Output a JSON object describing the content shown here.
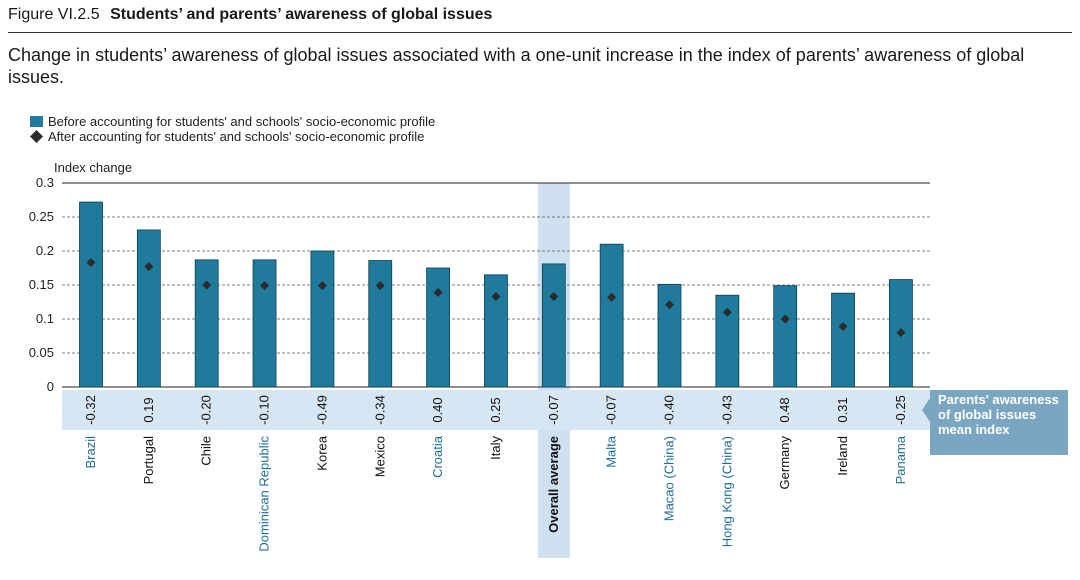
{
  "figure": {
    "number": "Figure VI.2.5",
    "title": "Students’ and parents’ awareness of global issues",
    "subtitle": "Change in students’ awareness of global issues associated with a one-unit increase in the index of parents’ awareness of global issues."
  },
  "colors": {
    "bar": "#1f7a9c",
    "marker": "#2b2b2b",
    "band": "#d7e6f3",
    "highlight": "#cfe1f1",
    "callout": "#7aa6c2",
    "highlight_text": "#1f6e9a"
  },
  "chart_data": {
    "type": "bar",
    "ylabel": "Index change",
    "ylim": [
      0,
      0.3
    ],
    "yticks": [
      0,
      0.05,
      0.1,
      0.15,
      0.2,
      0.25,
      0.3
    ],
    "ytick_labels": [
      "0",
      "0.05",
      "0.1",
      "0.15",
      "0.2",
      "0.25",
      "0.3"
    ],
    "grid": true,
    "legend_position": "top-left",
    "categories": [
      "Brazil",
      "Portugal",
      "Chile",
      "Dominican Republic",
      "Korea",
      "Mexico",
      "Croatia",
      "Italy",
      "Overall average",
      "Malta",
      "Macao (China)",
      "Hong Kong (China)",
      "Germany",
      "Ireland",
      "Panama"
    ],
    "category_highlight": [
      true,
      false,
      false,
      true,
      false,
      false,
      true,
      false,
      false,
      true,
      true,
      true,
      false,
      false,
      true
    ],
    "overall_index": 8,
    "series": [
      {
        "name": "Before accounting for students' and schools' socio-economic profile",
        "kind": "bar",
        "values": [
          0.272,
          0.231,
          0.187,
          0.187,
          0.2,
          0.186,
          0.175,
          0.165,
          0.181,
          0.21,
          0.151,
          0.135,
          0.149,
          0.138,
          0.158
        ]
      },
      {
        "name": "After accounting for students' and schools' socio-economic profile",
        "kind": "marker",
        "values": [
          0.183,
          0.177,
          0.15,
          0.149,
          0.149,
          0.149,
          0.139,
          0.133,
          0.133,
          0.132,
          0.121,
          0.11,
          0.1,
          0.089,
          0.08
        ]
      }
    ],
    "index_values": [
      "-0.32",
      "0.19",
      "-0.20",
      "-0.10",
      "-0.49",
      "-0.34",
      "0.40",
      "0.25",
      "-0.07",
      "-0.07",
      "-0.40",
      "-0.43",
      "0.48",
      "0.31",
      "-0.25"
    ],
    "index_callout": [
      "Parents' awareness",
      "of global issues",
      "mean index"
    ]
  }
}
